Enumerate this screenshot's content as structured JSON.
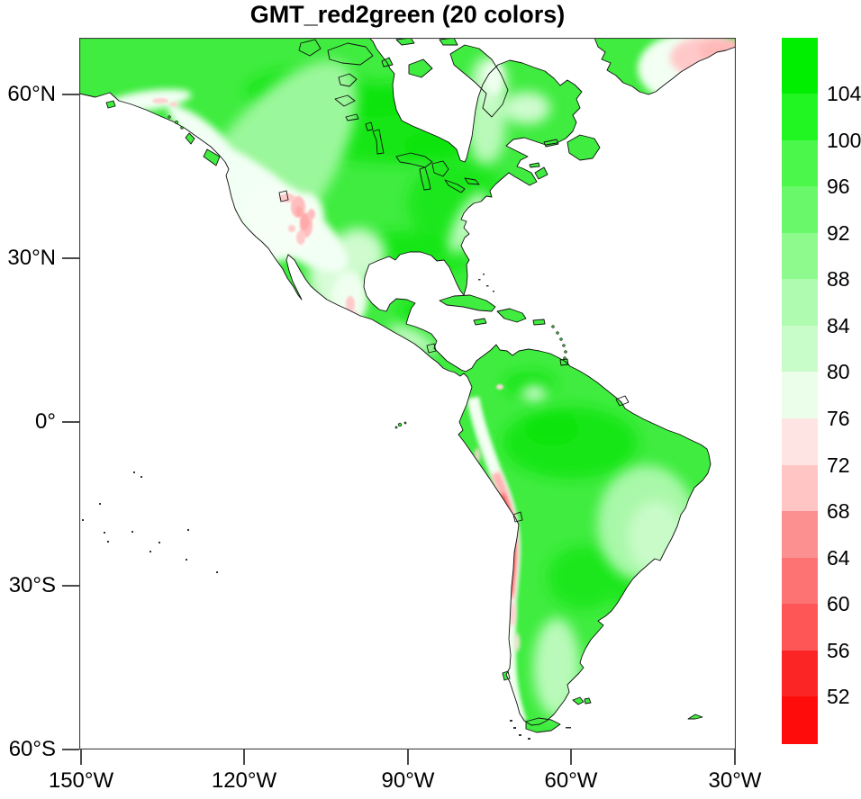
{
  "title": "GMT_red2green (20 colors)",
  "axes": {
    "x": {
      "ticks": [
        "150°W",
        "120°W",
        "90°W",
        "60°W",
        "30°W"
      ]
    },
    "y": {
      "ticks": [
        "60°N",
        "30°N",
        "0°",
        "30°S",
        "60°S"
      ]
    }
  },
  "colorbar": {
    "labels_top_to_bottom": [
      "104",
      "100",
      "96",
      "92",
      "88",
      "84",
      "80",
      "76",
      "72",
      "68",
      "64",
      "60",
      "56",
      "52"
    ],
    "colors_top_to_bottom": [
      "#00EE00",
      "#22F622",
      "#4BF74B",
      "#69F869",
      "#8EFA8E",
      "#AFFBAF",
      "#C8FCC8",
      "#EAFEEA",
      "#FFE4E4",
      "#FFC5C5",
      "#FC8F8F",
      "#FD7272",
      "#FE5656",
      "#FB2525",
      "#FE0C0C"
    ]
  },
  "chart_data": {
    "type": "heatmap",
    "title": "GMT_red2green (20 colors)",
    "palette_name": "GMT_red2green",
    "map_region": "North and South America, cylindrical-equidistant view",
    "x_tick_labels": [
      "150°W",
      "120°W",
      "90°W",
      "60°W",
      "30°W"
    ],
    "y_tick_labels": [
      "60°N",
      "30°N",
      "0°",
      "30°S",
      "60°S"
    ],
    "lon_range_deg_west": [
      150,
      30
    ],
    "lat_range": [
      "60°S",
      "70°N"
    ],
    "colorbar_levels_low_to_high": [
      52,
      56,
      60,
      64,
      68,
      72,
      76,
      80,
      84,
      88,
      92,
      96,
      100,
      104
    ],
    "colorbar_colors_low_to_high": [
      "#FE0C0C",
      "#FB2525",
      "#FE5656",
      "#FD7272",
      "#FC8F8F",
      "#FFC5C5",
      "#FFE4E4",
      "#EAFEEA",
      "#C8FCC8",
      "#AFFBAF",
      "#8EFA8E",
      "#69F869",
      "#4BF74B",
      "#22F622",
      "#00EE00"
    ],
    "shading_notes": "Field shaded over land only; ocean white. Lowlands bright green (88-104). High terrain pale/white to red: Alaska Range and western cordillera whitish, Rockies/Great Basin with pink spots (~68-76), Mexican Plateau pale with pink, Andes crest deep red (52-64), Greenland ice sheet pink (~68-76), Brazilian highlands and Patagonia pale green."
  }
}
